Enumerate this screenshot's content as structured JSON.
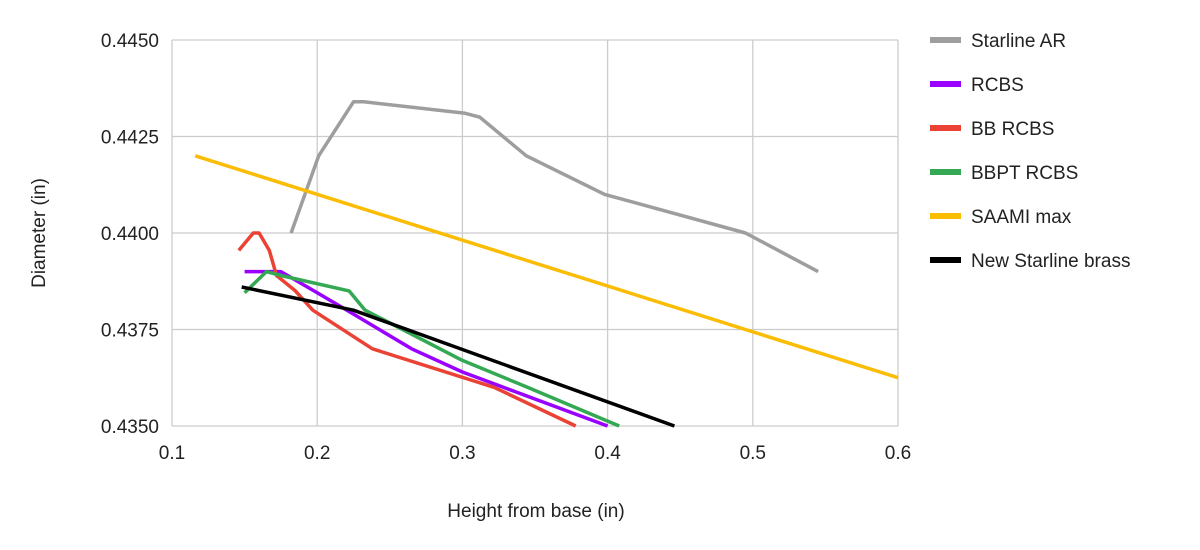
{
  "chart_data": {
    "type": "line",
    "title": "",
    "xlabel": "Height from base (in)",
    "ylabel": "Diameter (in)",
    "xlim": [
      0.1,
      0.6
    ],
    "ylim": [
      0.435,
      0.445
    ],
    "x_ticks": [
      "0.1",
      "0.2",
      "0.3",
      "0.4",
      "0.5",
      "0.6"
    ],
    "y_ticks": [
      "0.4350",
      "0.4375",
      "0.4400",
      "0.4425",
      "0.4450"
    ],
    "grid": true,
    "legend_position": "right",
    "series": [
      {
        "name": "Starline AR",
        "color": "#9e9e9e",
        "points": [
          [
            0.182,
            0.44
          ],
          [
            0.201,
            0.442
          ],
          [
            0.225,
            0.4434
          ],
          [
            0.232,
            0.4434
          ],
          [
            0.302,
            0.4431
          ],
          [
            0.312,
            0.443
          ],
          [
            0.344,
            0.442
          ],
          [
            0.398,
            0.441
          ],
          [
            0.495,
            0.44
          ],
          [
            0.545,
            0.439
          ]
        ]
      },
      {
        "name": "RCBS",
        "color": "#9900ff",
        "points": [
          [
            0.15,
            0.439
          ],
          [
            0.175,
            0.439
          ],
          [
            0.2,
            0.43845
          ],
          [
            0.225,
            0.4379
          ],
          [
            0.265,
            0.437
          ],
          [
            0.3,
            0.4364
          ],
          [
            0.4,
            0.435
          ]
        ]
      },
      {
        "name": "BB RCBS",
        "color": "#ea4335",
        "points": [
          [
            0.146,
            0.43955
          ],
          [
            0.156,
            0.44
          ],
          [
            0.16,
            0.44
          ],
          [
            0.167,
            0.43955
          ],
          [
            0.172,
            0.4389
          ],
          [
            0.185,
            0.4385
          ],
          [
            0.197,
            0.438
          ],
          [
            0.238,
            0.437
          ],
          [
            0.322,
            0.436
          ],
          [
            0.378,
            0.435
          ]
        ]
      },
      {
        "name": "BBPT RCBS",
        "color": "#34a853",
        "points": [
          [
            0.15,
            0.43845
          ],
          [
            0.165,
            0.439
          ],
          [
            0.175,
            0.4389
          ],
          [
            0.222,
            0.4385
          ],
          [
            0.233,
            0.438
          ],
          [
            0.3,
            0.4367
          ],
          [
            0.345,
            0.436
          ],
          [
            0.408,
            0.435
          ]
        ]
      },
      {
        "name": "SAAMI max",
        "color": "#fbbc04",
        "points": [
          [
            0.116,
            0.442
          ],
          [
            0.6,
            0.43625
          ]
        ]
      },
      {
        "name": "New Starline brass",
        "color": "#000000",
        "points": [
          [
            0.148,
            0.4386
          ],
          [
            0.225,
            0.438
          ],
          [
            0.446,
            0.435
          ]
        ]
      }
    ]
  }
}
